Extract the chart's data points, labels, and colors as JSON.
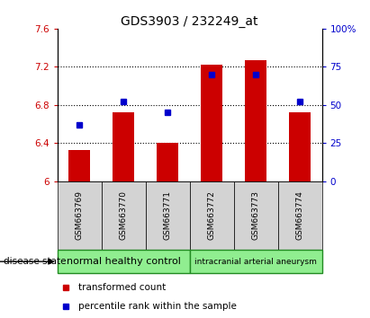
{
  "title": "GDS3903 / 232249_at",
  "samples": [
    "GSM663769",
    "GSM663770",
    "GSM663771",
    "GSM663772",
    "GSM663773",
    "GSM663774"
  ],
  "bar_values": [
    6.33,
    6.72,
    6.4,
    7.22,
    7.27,
    6.72
  ],
  "bar_base": 6.0,
  "percentile_values": [
    37,
    52,
    45,
    70,
    70,
    52
  ],
  "ylim_left": [
    6.0,
    7.6
  ],
  "ylim_right": [
    0,
    100
  ],
  "yticks_left": [
    6.0,
    6.4,
    6.8,
    7.2,
    7.6
  ],
  "ytick_labels_left": [
    "6",
    "6.4",
    "6.8",
    "7.2",
    "7.6"
  ],
  "yticks_right": [
    0,
    25,
    50,
    75,
    100
  ],
  "ytick_labels_right": [
    "0",
    "25",
    "50",
    "75",
    "100%"
  ],
  "bar_color": "#cc0000",
  "dot_color": "#0000cc",
  "bar_width": 0.5,
  "group1_label": "normal healthy control",
  "group2_label": "intracranial arterial aneurysm",
  "group_box_color": "#90ee90",
  "group_border_color": "#228B22",
  "sample_box_color": "#d3d3d3",
  "disease_state_label": "disease state",
  "legend_bar_label": "transformed count",
  "legend_dot_label": "percentile rank within the sample",
  "title_fontsize": 10,
  "tick_label_fontsize": 7.5,
  "sample_label_fontsize": 6.5,
  "group_label_fontsize1": 8,
  "group_label_fontsize2": 6.5,
  "legend_fontsize": 7.5
}
